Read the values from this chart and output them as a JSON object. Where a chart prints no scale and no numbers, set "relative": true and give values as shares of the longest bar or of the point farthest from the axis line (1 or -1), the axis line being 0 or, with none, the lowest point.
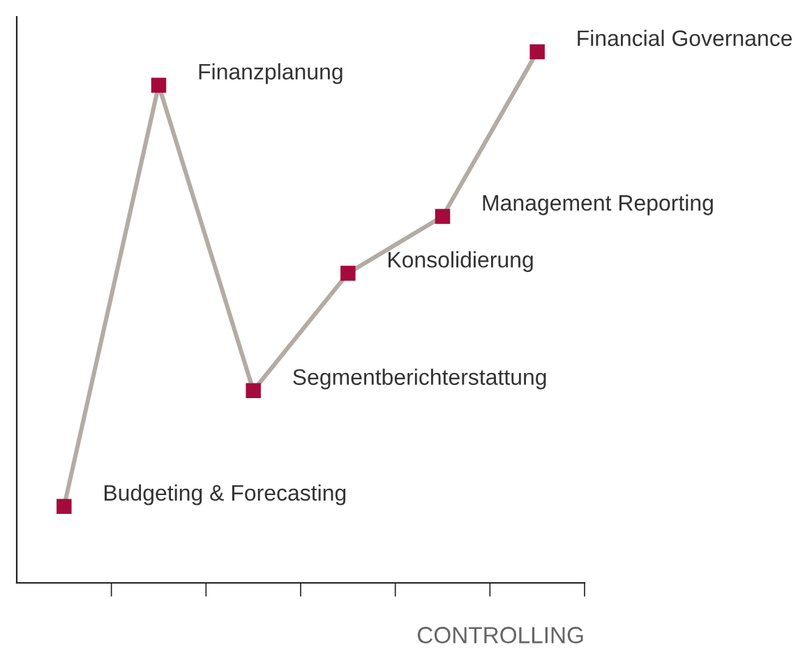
{
  "chart_data": {
    "type": "line",
    "relative": true,
    "xlabel": "CONTROLLING",
    "categories": [
      null,
      null,
      null,
      null,
      null,
      null
    ],
    "series": [
      {
        "color": "#b3aca4",
        "colors": [
          "#a50a3c",
          "#a50a3c",
          "#a50a3c",
          "#a50a3c",
          "#a50a3c",
          "#a50a3c"
        ],
        "values": [
          0.144,
          0.937,
          0.362,
          0.583,
          0.69,
          1.0
        ]
      }
    ],
    "marker": "square",
    "line_style": "solid",
    "grid": false,
    "legend": false,
    "annotations": [
      "Budgeting & Forecasting",
      "Finanzplanung",
      "Segmentberichterstattung",
      "Konsolidierung",
      "Management Reporting",
      "Financial Governance"
    ]
  }
}
